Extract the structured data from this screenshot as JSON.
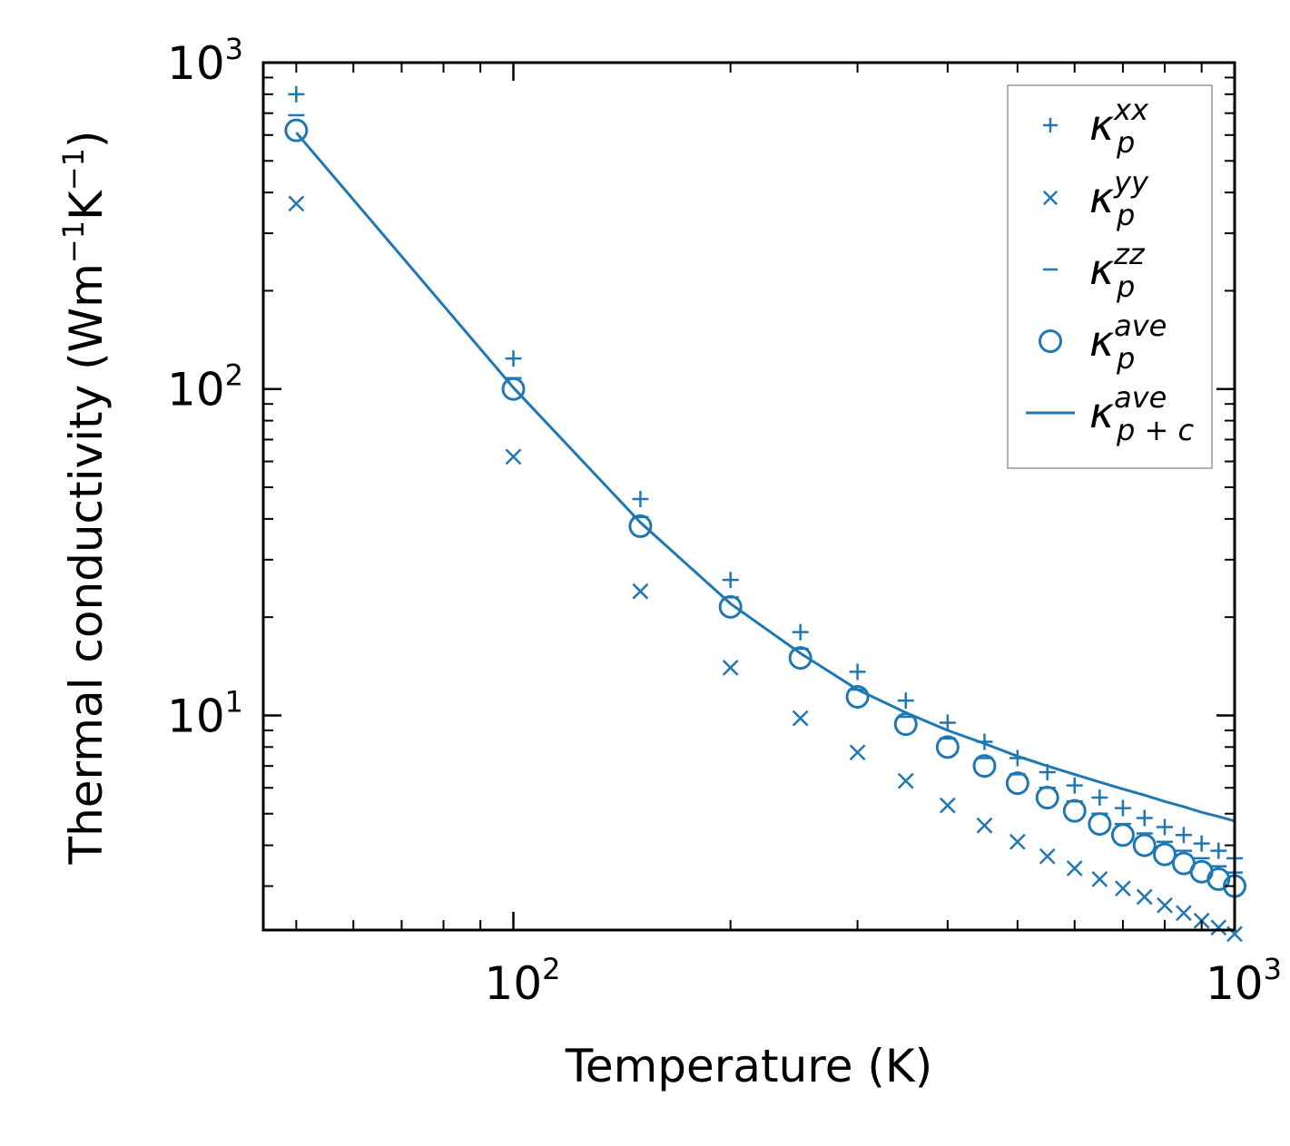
{
  "colors": {
    "series": "#1f77b4",
    "axis": "#000000",
    "legend_border": "#999999"
  },
  "chart_data": {
    "type": "scatter",
    "xscale": "log",
    "yscale": "log",
    "xlim": [
      45,
      1000
    ],
    "ylim": [
      2.2,
      1000
    ],
    "xlabel": "Temperature (K)",
    "ylabel": {
      "main": "Thermal conductivity (Wm",
      "exp1": "−1",
      "mid": "K",
      "exp2": "−1",
      "close": ")"
    },
    "xticks": [
      {
        "value": 100,
        "base": "10",
        "exp": "2"
      },
      {
        "value": 1000,
        "base": "10",
        "exp": "3"
      }
    ],
    "yticks": [
      {
        "value": 10,
        "base": "10",
        "exp": "1"
      },
      {
        "value": 100,
        "base": "10",
        "exp": "2"
      },
      {
        "value": 1000,
        "base": "10",
        "exp": "3"
      }
    ],
    "x": [
      50,
      100,
      150,
      200,
      250,
      300,
      350,
      400,
      450,
      500,
      550,
      600,
      650,
      700,
      750,
      800,
      850,
      900,
      950,
      1000
    ],
    "series": [
      {
        "name": "kappa_p_xx",
        "marker": "plus",
        "legend": {
          "base": "κ",
          "sub": "p",
          "sup": "xx"
        },
        "values": [
          800,
          124,
          46,
          26,
          18,
          13.6,
          11.1,
          9.5,
          8.3,
          7.4,
          6.7,
          6.1,
          5.6,
          5.2,
          4.85,
          4.55,
          4.3,
          4.05,
          3.85,
          3.65
        ]
      },
      {
        "name": "kappa_p_yy",
        "marker": "x",
        "legend": {
          "base": "κ",
          "sub": "p",
          "sup": "yy"
        },
        "values": [
          370,
          62,
          24,
          14,
          9.8,
          7.7,
          6.3,
          5.3,
          4.6,
          4.1,
          3.7,
          3.4,
          3.15,
          2.95,
          2.78,
          2.62,
          2.48,
          2.35,
          2.24,
          2.14
        ]
      },
      {
        "name": "kappa_p_zz",
        "marker": "hline",
        "legend": {
          "base": "κ",
          "sub": "p",
          "sup": "zz"
        },
        "values": [
          690,
          108,
          40.5,
          23,
          16,
          12,
          9.9,
          8.5,
          7.4,
          6.6,
          6,
          5.45,
          5,
          4.65,
          4.35,
          4.1,
          3.85,
          3.65,
          3.45,
          3.3
        ]
      },
      {
        "name": "kappa_p_ave",
        "marker": "circle",
        "legend": {
          "base": "κ",
          "sub": "p",
          "sup": "ave"
        },
        "values": [
          620,
          100,
          38,
          21.5,
          15,
          11.4,
          9.4,
          8,
          7,
          6.2,
          5.6,
          5.1,
          4.65,
          4.3,
          4,
          3.75,
          3.52,
          3.32,
          3.15,
          3
        ]
      },
      {
        "name": "kappa_pc_ave",
        "marker": "line",
        "legend": {
          "base": "κ",
          "sub": "p + c",
          "sup": "ave"
        },
        "values": [
          610,
          101,
          39,
          22,
          15.5,
          12,
          10.2,
          9,
          8.2,
          7.5,
          7,
          6.6,
          6.25,
          5.95,
          5.7,
          5.45,
          5.25,
          5.05,
          4.9,
          4.75
        ]
      }
    ],
    "legend_position": "top-right"
  }
}
